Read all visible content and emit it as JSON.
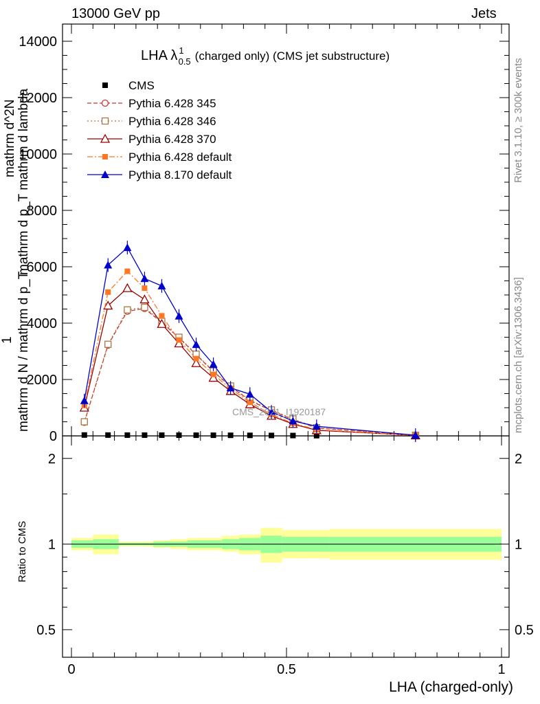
{
  "header": {
    "left": "13000 GeV pp",
    "right": "Jets",
    "side_top": "Rivet 3.1.10, ≥ 300k events",
    "side_bottom": "mcplots.cern.ch [arXiv:1306.3436]"
  },
  "chart_data": [
    {
      "type": "line",
      "title": "LHA λ¹₀.₅ (charged only) (CMS jet substructure)",
      "title_main": "LHA λ",
      "title_sup": "1",
      "title_sub": "0.5",
      "title_rest": "(charged only) (CMS jet substructure)",
      "watermark": "CMS_2021_I1920187",
      "ylabel_lines": [
        "1",
        "mathrm d N / mathrm d p_T",
        "mathrm d^2N",
        "mathrm d p_T mathrm d lambda"
      ],
      "xlim": [
        0,
        1
      ],
      "ylim": [
        0,
        14000
      ],
      "y_ticks": [
        0,
        2000,
        4000,
        6000,
        8000,
        10000,
        12000,
        14000
      ],
      "y_tick_labels": [
        "0",
        "2000",
        "4000",
        "6000",
        "8000",
        "10000",
        "12000",
        "14000"
      ],
      "x": [
        0.03,
        0.085,
        0.13,
        0.17,
        0.21,
        0.25,
        0.29,
        0.33,
        0.37,
        0.415,
        0.465,
        0.515,
        0.57,
        0.8
      ],
      "series": [
        {
          "name": "CMS",
          "color": "#000000",
          "marker": "square-filled",
          "dash": "",
          "values": [
            30,
            28,
            27,
            26,
            25,
            24,
            23,
            22,
            20,
            18,
            15,
            12,
            8,
            2
          ]
        },
        {
          "name": "Pythia 6.428 345",
          "color": "#cc3333",
          "marker": "circle-open",
          "dash": "6,3",
          "values": [
            480,
            3220,
            4420,
            4520,
            4020,
            3480,
            2880,
            2280,
            1750,
            1250,
            900,
            580,
            280,
            20
          ]
        },
        {
          "name": "Pythia 6.428 346",
          "color": "#aa7744",
          "marker": "square-open",
          "dash": "2,3",
          "values": [
            500,
            3250,
            4470,
            4560,
            4060,
            3500,
            2900,
            2300,
            1770,
            1270,
            920,
            600,
            290,
            22
          ]
        },
        {
          "name": "Pythia 6.428 370",
          "color": "#990000",
          "marker": "triangle-open",
          "dash": "",
          "values": [
            1000,
            4620,
            5240,
            4840,
            3970,
            3280,
            2580,
            2060,
            1590,
            1120,
            710,
            420,
            200,
            15
          ]
        },
        {
          "name": "Pythia 6.428 default",
          "color": "#ff7722",
          "marker": "square-filled",
          "dash": "8,3,2,3",
          "values": [
            1080,
            5100,
            5840,
            5240,
            4260,
            3400,
            2740,
            2180,
            1680,
            1190,
            760,
            450,
            220,
            16
          ]
        },
        {
          "name": "Pythia 8.170 default",
          "color": "#0000cc",
          "marker": "triangle-filled",
          "dash": "",
          "values": [
            1250,
            6060,
            6680,
            5580,
            5320,
            4250,
            3240,
            2540,
            1700,
            1480,
            850,
            530,
            340,
            25
          ]
        }
      ]
    },
    {
      "type": "area",
      "ylabel": "Ratio to CMS",
      "xlabel": "LHA (charged-only)",
      "xlim": [
        0,
        1
      ],
      "ylim": [
        0.4,
        2.4
      ],
      "log_y": true,
      "y_ticks": [
        0.5,
        1,
        2
      ],
      "y_tick_labels": [
        "0.5",
        "1",
        "2"
      ],
      "x_ticks": [
        0,
        0.5,
        1
      ],
      "x_tick_labels": [
        "0",
        "0.5",
        "1"
      ],
      "reference": 1,
      "bands": {
        "edges": [
          0,
          0.05,
          0.11,
          0.15,
          0.19,
          0.23,
          0.27,
          0.31,
          0.35,
          0.39,
          0.44,
          0.49,
          0.54,
          0.6,
          1
        ],
        "stat_low": [
          0.97,
          0.96,
          0.99,
          0.99,
          0.98,
          0.98,
          0.97,
          0.97,
          0.96,
          0.95,
          0.93,
          0.94,
          0.94,
          0.94
        ],
        "stat_high": [
          1.03,
          1.04,
          1.01,
          1.01,
          1.02,
          1.02,
          1.03,
          1.03,
          1.04,
          1.05,
          1.07,
          1.06,
          1.06,
          1.06
        ],
        "total_low": [
          0.95,
          0.92,
          0.98,
          0.98,
          0.97,
          0.96,
          0.95,
          0.95,
          0.94,
          0.92,
          0.86,
          0.89,
          0.89,
          0.88
        ],
        "total_high": [
          1.05,
          1.08,
          1.02,
          1.02,
          1.03,
          1.04,
          1.05,
          1.05,
          1.07,
          1.08,
          1.14,
          1.12,
          1.12,
          1.13
        ],
        "stat_color": "#99ff99",
        "total_color": "#ffff99"
      }
    }
  ]
}
